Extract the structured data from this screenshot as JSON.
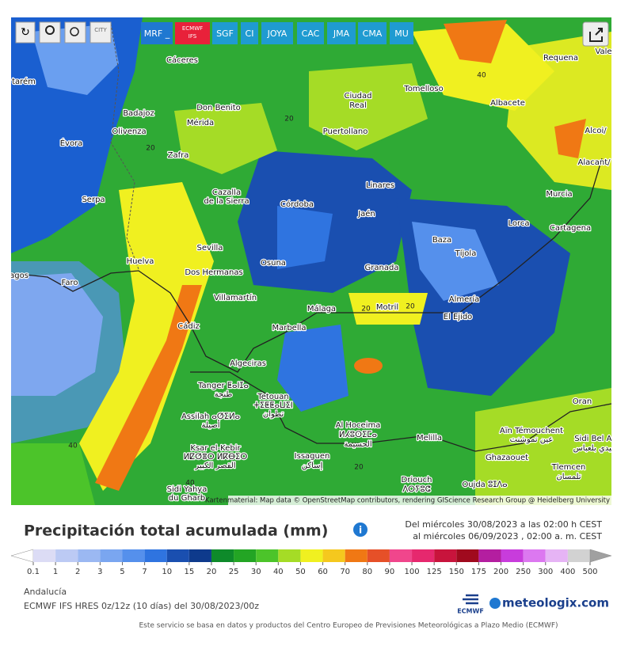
{
  "toolbar": {
    "city": "CITY",
    "models": [
      {
        "label": "MRF _",
        "color": "#1f78d1"
      },
      {
        "label": "ECMWF IFS",
        "color": "#e8213a"
      },
      {
        "label": "SGF",
        "color": "#1f9bd1"
      },
      {
        "label": "CI",
        "color": "#1f9bd1"
      },
      {
        "label": "JOYA",
        "color": "#1f9bd1"
      },
      {
        "label": "CAC",
        "color": "#1f9bd1"
      },
      {
        "label": "JMA",
        "color": "#1f9bd1"
      },
      {
        "label": "CMA",
        "color": "#1f9bd1"
      },
      {
        "label": "MU",
        "color": "#1f9bd1"
      }
    ]
  },
  "map": {
    "attribution": "Kartenmaterial: Map data © OpenStreetMap contributors, rendering GIScience Research Group @ Heidelberg University",
    "labels": [
      "Cáceres",
      "Badajoz",
      "Don Benito",
      "Mérida",
      "Olivenza",
      "Évora",
      "Zafra",
      "Serpa",
      "Cazalla",
      "de la Sierra",
      "Córdoba",
      "Huelva",
      "Faro",
      "Sevilla",
      "Dos Hermanas",
      "Osuna",
      "Villamartín",
      "Málaga",
      "Cádiz",
      "Marbella",
      "Algeciras",
      "Tanger ⵟⴰⵏⵊⴰ",
      "طنجة",
      "Tetouan",
      "ⵜⵉⵟⵟⴰⵡⵉⵏ",
      "تطوان",
      "Assilah ⴰⵚⵉⵍⴰ",
      "أصيلة",
      "Ksar el-Kebir",
      "ⵍⵇⵚⴻⵔ ⵍⴽⴱⵉⵔ",
      "القصر الكبير",
      "Al Hoceima",
      "ⵍⵃⵓⵙⵉⵎⴰ",
      "الحسيمة",
      "Issaguen",
      "إساكن",
      "Melilla",
      "Driouch",
      "ⴷⵔⵢⵓⵛ",
      "Oujda ⵓⵊⴷⴰ",
      "Ghazaouet",
      "Aïn Témouchent",
      "عين تموشنت",
      "Tlemcen",
      "تلمسان",
      "Sidi Bel Ab",
      "سيدي بلعباس",
      "Oran",
      "Sidi Yahya",
      "du Gharb",
      "Almería",
      "El Ejido",
      "Motril",
      "Granada",
      "Tíjola",
      "Baza",
      "Jaén",
      "Linares",
      "Lorca",
      "Cartagena",
      "Murcia",
      "Alacant/",
      "Alcoi/",
      "Albacete",
      "Requena",
      "Tomelloso",
      "Ciudad",
      "Real",
      "Puertollano",
      "Vale",
      "tarém",
      "agos",
      "20",
      "20",
      "20",
      "20",
      "40",
      "40",
      "20",
      "40"
    ]
  },
  "title": "Precipitación total acumulada (mm)",
  "info": "i",
  "period": [
    "Del miércoles 30/08/2023 a  las 02:00 h  CEST",
    "al miércoles 06/09/2023 ,  02:00 a. m.  CEST"
  ],
  "legend": {
    "ticks": [
      0.1,
      1,
      2,
      3,
      5,
      7,
      10,
      15,
      20,
      25,
      30,
      40,
      50,
      60,
      70,
      80,
      90,
      100,
      125,
      150,
      175,
      200,
      250,
      300,
      400,
      500
    ],
    "colors": [
      "#ffffff",
      "#dcdcf5",
      "#bccaf4",
      "#9bb8f2",
      "#7aa6f0",
      "#5590ec",
      "#2f74e0",
      "#1a4fb0",
      "#0e3a8c",
      "#0e8a2a",
      "#23a524",
      "#4cc42a",
      "#a5dc26",
      "#f0f020",
      "#f5c81e",
      "#f07814",
      "#e65028",
      "#f0468c",
      "#e6286e",
      "#c8143c",
      "#a00a1e",
      "#b41ea0",
      "#c83cdc",
      "#dc78f0",
      "#e6b4f5",
      "#d2d2d2",
      "#a0a0a0"
    ]
  },
  "region": "Andalucía",
  "model_run": "ECMWF IFS HRES 0z/12z (10 días) del 30/08/2023/00z",
  "ecmwf": "ECMWF",
  "brand": "meteologix.com",
  "credit": "Este servicio se basa en datos y productos del Centro Europeo de Previsiones Meteorológicas a Plazo Medio (ECMWF)"
}
